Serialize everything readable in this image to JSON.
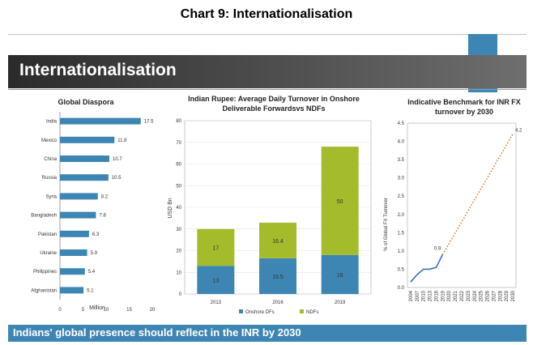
{
  "page": {
    "title": "Chart 9: Internationalisation",
    "banner": "Internationalisation",
    "footer": "Indians' global presence should reflect in the INR by 2030"
  },
  "colors": {
    "banner_dark": "#2b2b2b",
    "accent_blue": "#3d86b4",
    "onshore": "#3d86b4",
    "ndf": "#a4bb2c",
    "benchmark_dots": "#e07b2c",
    "benchmark_line": "#3d6fbf"
  },
  "chart_data": [
    {
      "type": "bar",
      "orientation": "horizontal",
      "title": "Global Diaspora",
      "xlabel": "Million",
      "categories": [
        "India",
        "Mexico",
        "China",
        "Russia",
        "Syria",
        "Bangladesh",
        "Pakistan",
        "Ukraine",
        "Philippines",
        "Afghanistan"
      ],
      "values": [
        17.5,
        11.8,
        10.7,
        10.5,
        8.2,
        7.8,
        6.3,
        5.9,
        5.4,
        5.1
      ],
      "value_labels": [
        "17.5",
        "11.8",
        "10.7",
        "10.5",
        "8.2",
        "7.8",
        "6.3",
        "5.9",
        "5.4",
        "5.1"
      ],
      "xticks": [
        "0",
        "5",
        "10",
        "15",
        "20"
      ],
      "xlim": [
        0,
        20
      ]
    },
    {
      "type": "bar",
      "stacked": true,
      "title_lines": [
        "Indian Rupee: Average Daily Turnover in Onshore",
        "Deliverable Forwardsvs NDFs"
      ],
      "ylabel": "USD Bn",
      "categories": [
        "2013",
        "2016",
        "2019"
      ],
      "series": [
        {
          "name": "Onshore DFs",
          "values": [
            13,
            16.5,
            18
          ],
          "value_labels": [
            "13",
            "16.5",
            "18"
          ]
        },
        {
          "name": "NDFs",
          "values": [
            17,
            16.4,
            50
          ],
          "value_labels": [
            "17",
            "16.4",
            "50"
          ]
        }
      ],
      "yticks": [
        "0",
        "10",
        "20",
        "30",
        "40",
        "50",
        "60",
        "70",
        "80"
      ],
      "ylim": [
        0,
        80
      ],
      "legend": "bottom"
    },
    {
      "type": "line",
      "title_lines": [
        "Indicative Benchmark for INR FX",
        "turnover by 2030"
      ],
      "ylabel": "% of Global FX Turnover",
      "x": [
        "2004",
        "2007",
        "2010",
        "2013",
        "2016",
        "2019",
        "2020",
        "2021",
        "2022",
        "2023",
        "2024",
        "2025",
        "2026",
        "2027",
        "2028",
        "2029",
        "2030"
      ],
      "series": [
        {
          "style": "solid",
          "x": [
            "2004",
            "2007",
            "2010",
            "2013",
            "2016",
            "2019"
          ],
          "values": [
            0.15,
            0.35,
            0.5,
            0.5,
            0.55,
            0.9
          ]
        },
        {
          "style": "dotted",
          "x": [
            "2019",
            "2030"
          ],
          "values": [
            0.9,
            4.2
          ]
        }
      ],
      "annotations": [
        "0.9",
        "4.2"
      ],
      "yticks": [
        "0.0",
        "0.5",
        "1.0",
        "1.5",
        "2.0",
        "2.5",
        "3.0",
        "3.5",
        "4.0",
        "4.5"
      ],
      "ylim": [
        0,
        4.5
      ]
    }
  ]
}
